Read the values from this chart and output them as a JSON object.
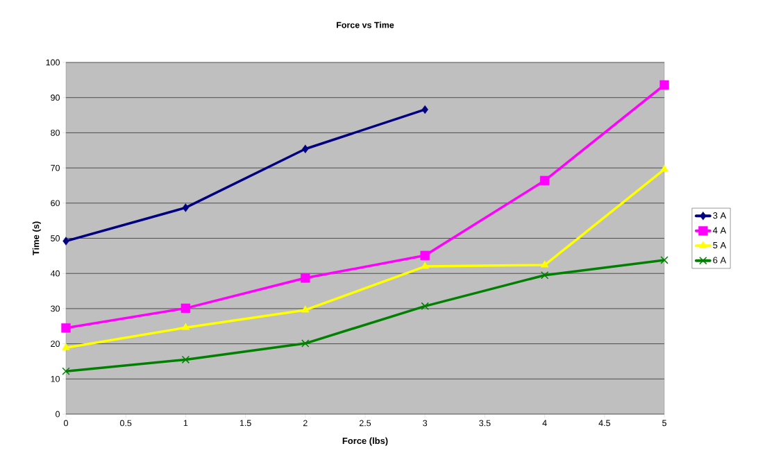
{
  "chart_data": {
    "type": "line",
    "title": "Force vs Time",
    "xlabel": "Force (lbs)",
    "ylabel": "Time (s)",
    "x": [
      0,
      1,
      2,
      3,
      4,
      5
    ],
    "xlim": [
      0,
      5
    ],
    "xticks": [
      0,
      0.5,
      1,
      1.5,
      2,
      2.5,
      3,
      3.5,
      4,
      4.5,
      5
    ],
    "ylim": [
      0,
      100
    ],
    "yticks": [
      0,
      10,
      20,
      30,
      40,
      50,
      60,
      70,
      80,
      90,
      100
    ],
    "grid": "y",
    "legend": "right",
    "line_style": "solid",
    "series": [
      {
        "name": "3 A",
        "color": "#000080",
        "marker": "diamond",
        "values": [
          49.2,
          58.7,
          75.4,
          86.6,
          null,
          null
        ]
      },
      {
        "name": "4 A",
        "color": "#ff00ff",
        "marker": "square",
        "values": [
          24.5,
          30.1,
          38.7,
          45.1,
          66.4,
          93.6
        ]
      },
      {
        "name": "5 A",
        "color": "#ffff00",
        "marker": "triangle",
        "values": [
          18.9,
          24.6,
          29.6,
          42,
          42.4,
          69.6
        ]
      },
      {
        "name": "6 A",
        "color": "#008000",
        "marker": "cross",
        "values": [
          12.2,
          15.5,
          20.1,
          30.7,
          39.5,
          43.8
        ]
      }
    ]
  }
}
